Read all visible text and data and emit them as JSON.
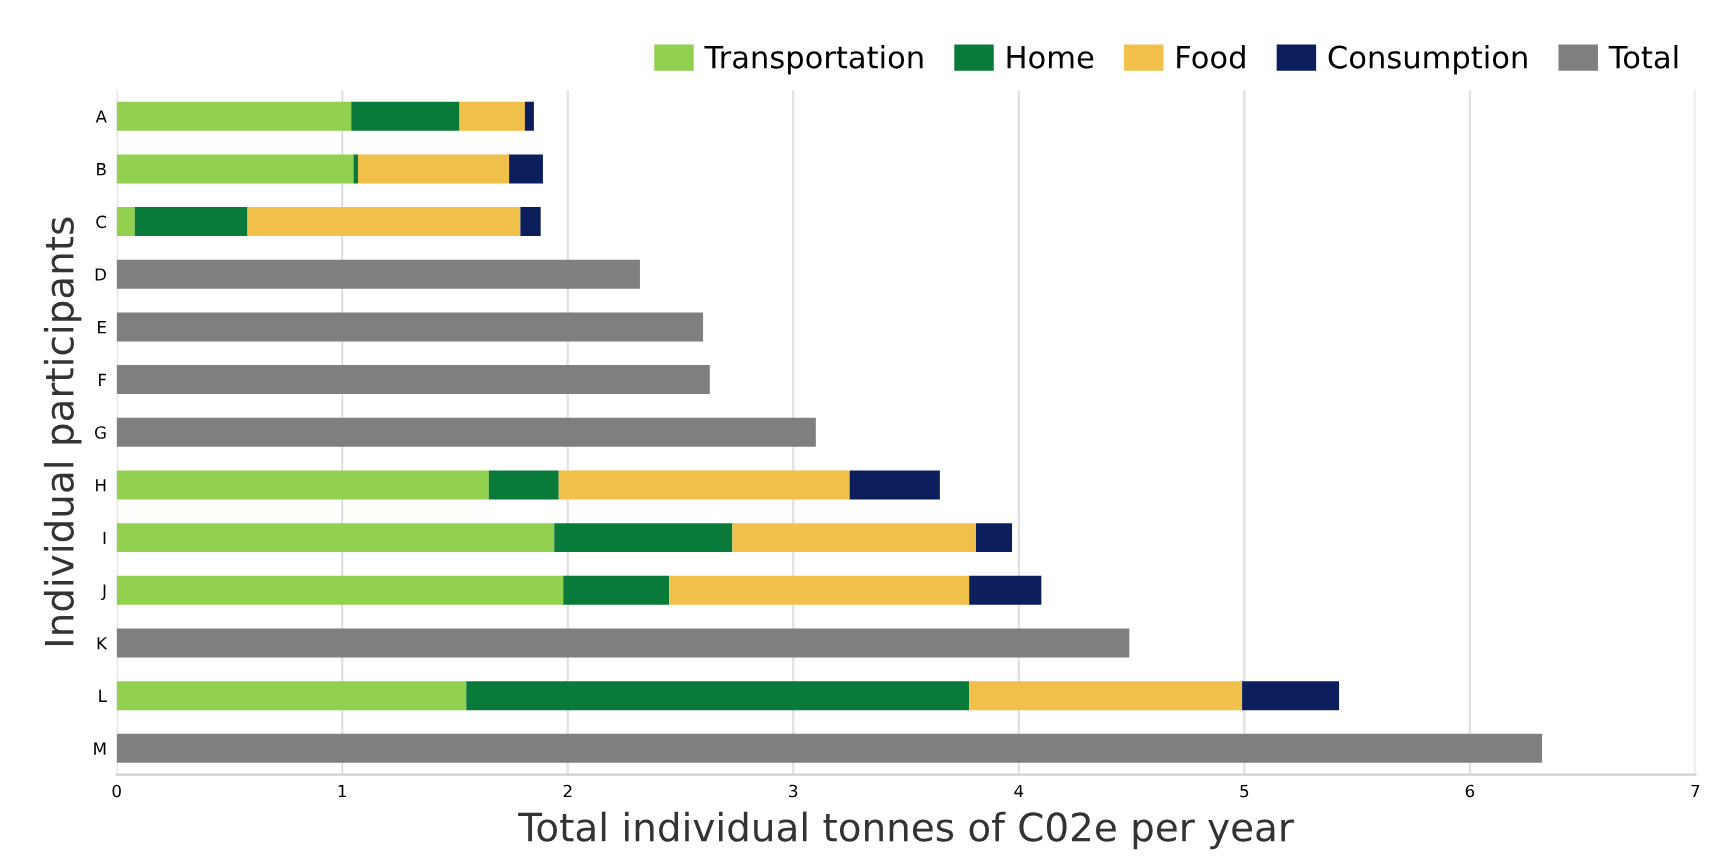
{
  "chart_data": {
    "type": "bar",
    "orientation": "horizontal",
    "stacked": true,
    "xlabel": "Total individual tonnes of C02e per year",
    "ylabel": "Individual participants",
    "categories": [
      "A",
      "B",
      "C",
      "D",
      "E",
      "F",
      "G",
      "H",
      "I",
      "J",
      "K",
      "L",
      "M"
    ],
    "series": [
      {
        "name": "Transportation",
        "color": "#92d050",
        "values": [
          1.04,
          1.05,
          0.08,
          null,
          null,
          null,
          null,
          1.65,
          1.94,
          1.98,
          null,
          1.55,
          null
        ]
      },
      {
        "name": "Home",
        "color": "#0a7a3a",
        "values": [
          0.48,
          0.02,
          0.5,
          null,
          null,
          null,
          null,
          0.31,
          0.79,
          0.47,
          null,
          2.23,
          null
        ]
      },
      {
        "name": "Food",
        "color": "#f0c04a",
        "values": [
          0.29,
          0.67,
          1.21,
          null,
          null,
          null,
          null,
          1.29,
          1.08,
          1.33,
          null,
          1.21,
          null
        ]
      },
      {
        "name": "Consumption",
        "color": "#0c1f5c",
        "values": [
          0.04,
          0.15,
          0.09,
          null,
          null,
          null,
          null,
          0.4,
          0.16,
          0.32,
          null,
          0.43,
          null
        ]
      },
      {
        "name": "Total",
        "color": "#7f7f7f",
        "values": [
          null,
          null,
          null,
          2.32,
          2.6,
          2.63,
          3.1,
          null,
          null,
          null,
          4.49,
          null,
          6.32
        ]
      }
    ],
    "xlim": [
      0,
      7
    ],
    "xticks": [
      0,
      1,
      2,
      3,
      4,
      5,
      6,
      7
    ],
    "grid": "x",
    "legend": "top right"
  }
}
